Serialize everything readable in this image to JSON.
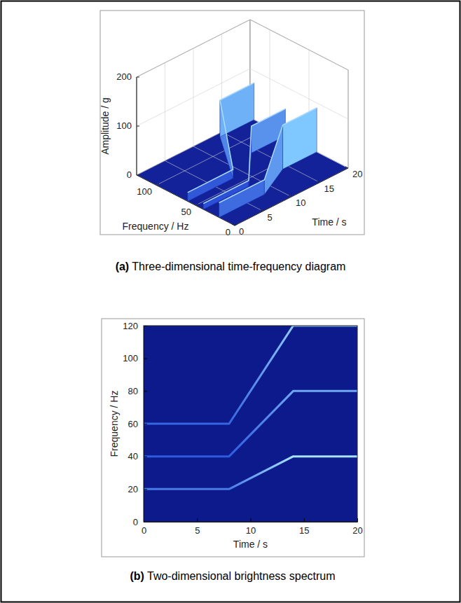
{
  "chart_data": [
    {
      "type": "surface3d",
      "title": "(a) Three-dimensional time-frequency diagram",
      "x_label": "Time / s",
      "y_label": "Frequency / Hz",
      "z_label": "Amplitude / g",
      "xlim": [
        0,
        20
      ],
      "xticks": [
        0,
        5,
        10,
        15,
        20
      ],
      "ylim": [
        0,
        125
      ],
      "yticks": [
        0,
        50,
        100
      ],
      "zlim": [
        0,
        200
      ],
      "zticks": [
        0,
        100,
        200
      ],
      "grid": true,
      "series": [
        {
          "x": [
            0,
            8,
            14,
            20
          ],
          "values": [
            20,
            20,
            40,
            40
          ],
          "amplitude": [
            30,
            30,
            90,
            90
          ]
        },
        {
          "x": [
            0,
            8,
            14,
            20
          ],
          "values": [
            40,
            40,
            80,
            80
          ],
          "amplitude": [
            12,
            12,
            55,
            55
          ]
        },
        {
          "x": [
            0,
            8,
            14,
            20
          ],
          "values": [
            60,
            60,
            120,
            120
          ],
          "amplitude": [
            18,
            18,
            75,
            75
          ]
        }
      ]
    },
    {
      "type": "spectrogram",
      "title": "(b) Two-dimensional brightness spectrum",
      "x_label": "Time / s",
      "y_label": "Frequency / Hz",
      "xlim": [
        0,
        20
      ],
      "xticks": [
        0,
        5,
        10,
        15,
        20
      ],
      "ylim": [
        0,
        120
      ],
      "yticks": [
        0,
        20,
        40,
        60,
        80,
        100,
        120
      ],
      "grid": false,
      "series": [
        {
          "x": [
            0,
            8,
            14,
            20
          ],
          "values": [
            20,
            20,
            40,
            40
          ],
          "amplitude": [
            30,
            30,
            90,
            90
          ]
        },
        {
          "x": [
            0,
            8,
            14,
            20
          ],
          "values": [
            40,
            40,
            80,
            80
          ],
          "amplitude": [
            12,
            12,
            55,
            55
          ]
        },
        {
          "x": [
            0,
            8,
            14,
            20
          ],
          "values": [
            60,
            60,
            120,
            120
          ],
          "amplitude": [
            18,
            18,
            75,
            75
          ]
        }
      ]
    }
  ]
}
